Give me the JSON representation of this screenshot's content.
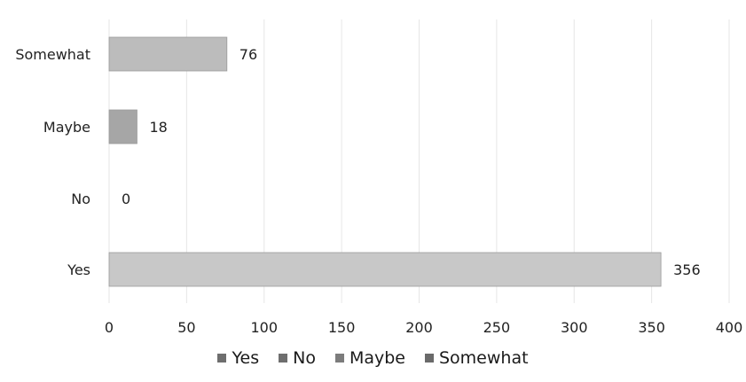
{
  "chart_data": {
    "type": "bar",
    "orientation": "horizontal",
    "categories": [
      "Yes",
      "No",
      "Maybe",
      "Somewhat"
    ],
    "values": [
      356,
      0,
      18,
      76
    ],
    "series": [
      {
        "name": "Yes",
        "values": [
          356,
          0,
          0,
          0
        ],
        "color": "#c8c8c8"
      },
      {
        "name": "No",
        "values": [
          0,
          0,
          0,
          0
        ],
        "color": "#7a7a7a"
      },
      {
        "name": "Maybe",
        "values": [
          0,
          0,
          18,
          0
        ],
        "color": "#a6a6a6"
      },
      {
        "name": "Somewhat",
        "values": [
          0,
          0,
          0,
          76
        ],
        "color": "#bcbcbc"
      }
    ],
    "xlim": [
      0,
      400
    ],
    "xticks": [
      0,
      50,
      100,
      150,
      200,
      250,
      300,
      350,
      400
    ],
    "grid": true,
    "data_labels": true,
    "legend_position": "bottom"
  },
  "legend_colors": [
    "#6e6e6e",
    "#6e6e6e",
    "#7c7c7c",
    "#6a6a6a"
  ]
}
